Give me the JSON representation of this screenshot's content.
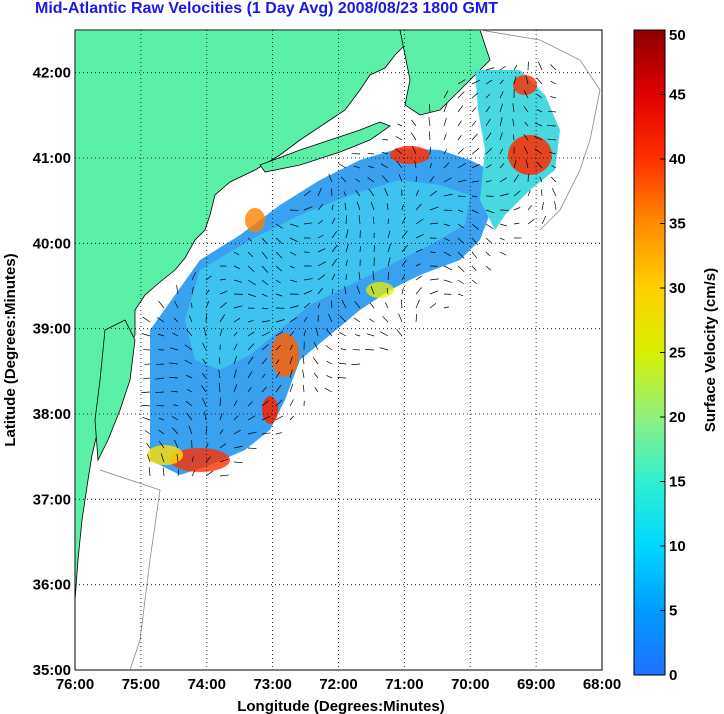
{
  "title": "Mid-Atlantic Raw Velocities (1 Day Avg) 2008/08/23 1800 GMT",
  "xlabel": "Longitude (Degrees:Minutes)",
  "ylabel": "Latitude (Degrees:Minutes)",
  "x_ticks": [
    "76:00",
    "75:00",
    "74:00",
    "73:00",
    "72:00",
    "71:00",
    "70:00",
    "69:00",
    "68:00"
  ],
  "y_ticks": [
    "42:00",
    "41:00",
    "40:00",
    "39:00",
    "38:00",
    "37:00",
    "36:00",
    "35:00"
  ],
  "colorbar": {
    "label": "Surface Velocity (cm/s)",
    "ticks": [
      "50",
      "45",
      "40",
      "35",
      "30",
      "25",
      "20",
      "15",
      "10",
      "5",
      "0"
    ],
    "range": [
      0,
      50
    ],
    "colors": [
      "#2070ff",
      "#00c8ff",
      "#40f0c0",
      "#d8f000",
      "#ffe000",
      "#ff8000",
      "#ff2000",
      "#8b0000"
    ]
  },
  "colors": {
    "land": "#5af0a8",
    "ocean": "#ffffff",
    "title": "#1a1ae6",
    "velocity_low": "#3a8cf0",
    "velocity_mid": "#48d8e8",
    "velocity_high": "#ff2a00"
  },
  "chart_data": {
    "type": "heatmap",
    "xlim": [
      -76,
      -68
    ],
    "ylim": [
      35,
      42.5
    ],
    "grid": true,
    "value_units": "cm/s",
    "value_range": [
      0,
      50
    ]
  }
}
